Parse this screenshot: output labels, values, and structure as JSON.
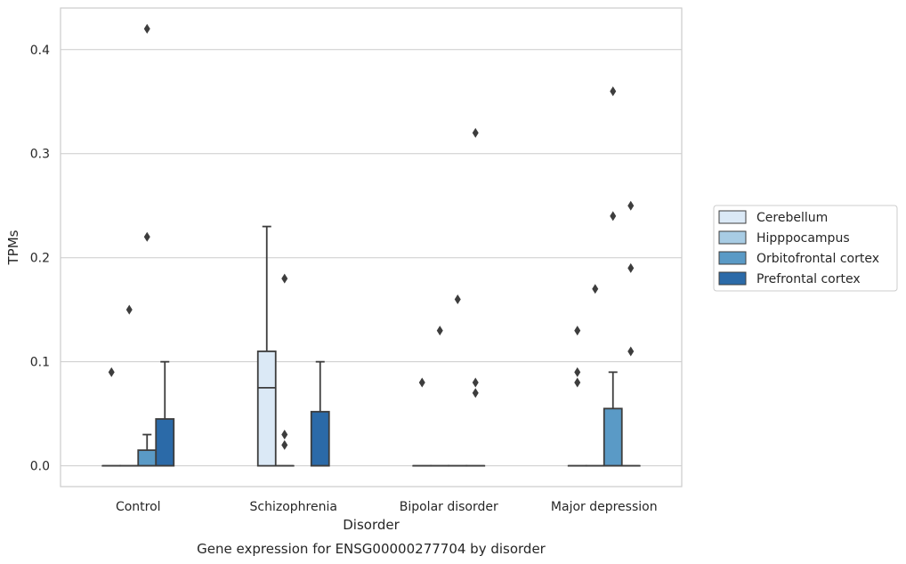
{
  "chart_data": {
    "type": "box",
    "title": "",
    "caption": "Gene expression for ENSG00000277704 by disorder",
    "xlabel": "Disorder",
    "ylabel": "TPMs",
    "ylim": [
      -0.02,
      0.44
    ],
    "yticks": [
      0.0,
      0.1,
      0.2,
      0.3,
      0.4
    ],
    "ytick_labels": [
      "0.0",
      "0.1",
      "0.2",
      "0.3",
      "0.4"
    ],
    "grid": "horizontal",
    "legend_position": "right",
    "categories": [
      "Control",
      "Schizophrenia",
      "Bipolar disorder",
      "Major depression"
    ],
    "series": [
      {
        "name": "Cerebellum",
        "color": "#dbe9f6",
        "boxes": [
          {
            "q1": 0,
            "median": 0,
            "q3": 0,
            "whisker_low": 0,
            "whisker_high": 0,
            "outliers": [
              0.09
            ]
          },
          {
            "q1": 0,
            "median": 0.075,
            "q3": 0.11,
            "whisker_low": 0,
            "whisker_high": 0.23,
            "outliers": []
          },
          {
            "q1": 0,
            "median": 0,
            "q3": 0,
            "whisker_low": 0,
            "whisker_high": 0,
            "outliers": [
              0.08
            ]
          },
          {
            "q1": 0,
            "median": 0,
            "q3": 0,
            "whisker_low": 0,
            "whisker_high": 0,
            "outliers": [
              0.13,
              0.09,
              0.08
            ]
          }
        ]
      },
      {
        "name": "Hipppocampus",
        "color": "#a8cce4",
        "boxes": [
          {
            "q1": 0,
            "median": 0,
            "q3": 0,
            "whisker_low": 0,
            "whisker_high": 0,
            "outliers": [
              0.15
            ]
          },
          {
            "q1": 0,
            "median": 0,
            "q3": 0,
            "whisker_low": 0,
            "whisker_high": 0,
            "outliers": [
              0.18,
              0.03,
              0.02
            ]
          },
          {
            "q1": 0,
            "median": 0,
            "q3": 0,
            "whisker_low": 0,
            "whisker_high": 0,
            "outliers": [
              0.13
            ]
          },
          {
            "q1": 0,
            "median": 0,
            "q3": 0,
            "whisker_low": 0,
            "whisker_high": 0,
            "outliers": [
              0.17
            ]
          }
        ]
      },
      {
        "name": "Orbitofrontal cortex",
        "color": "#5a9ac6",
        "boxes": [
          {
            "q1": 0,
            "median": 0,
            "q3": 0.015,
            "whisker_low": 0,
            "whisker_high": 0.03,
            "outliers": [
              0.42,
              0.22
            ]
          },
          null,
          {
            "q1": 0,
            "median": 0,
            "q3": 0,
            "whisker_low": 0,
            "whisker_high": 0,
            "outliers": [
              0.16
            ]
          },
          {
            "q1": 0,
            "median": 0,
            "q3": 0.055,
            "whisker_low": 0,
            "whisker_high": 0.09,
            "outliers": [
              0.36,
              0.24
            ]
          }
        ]
      },
      {
        "name": "Prefrontal cortex",
        "color": "#2b6aa8",
        "boxes": [
          {
            "q1": 0,
            "median": 0,
            "q3": 0.045,
            "whisker_low": 0,
            "whisker_high": 0.1,
            "outliers": []
          },
          {
            "q1": 0,
            "median": 0,
            "q3": 0.052,
            "whisker_low": 0,
            "whisker_high": 0.1,
            "outliers": []
          },
          {
            "q1": 0,
            "median": 0,
            "q3": 0,
            "whisker_low": 0,
            "whisker_high": 0,
            "outliers": [
              0.32,
              0.08,
              0.07
            ]
          },
          {
            "q1": 0,
            "median": 0,
            "q3": 0,
            "whisker_low": 0,
            "whisker_high": 0,
            "outliers": [
              0.25,
              0.19,
              0.11
            ]
          }
        ]
      }
    ]
  }
}
